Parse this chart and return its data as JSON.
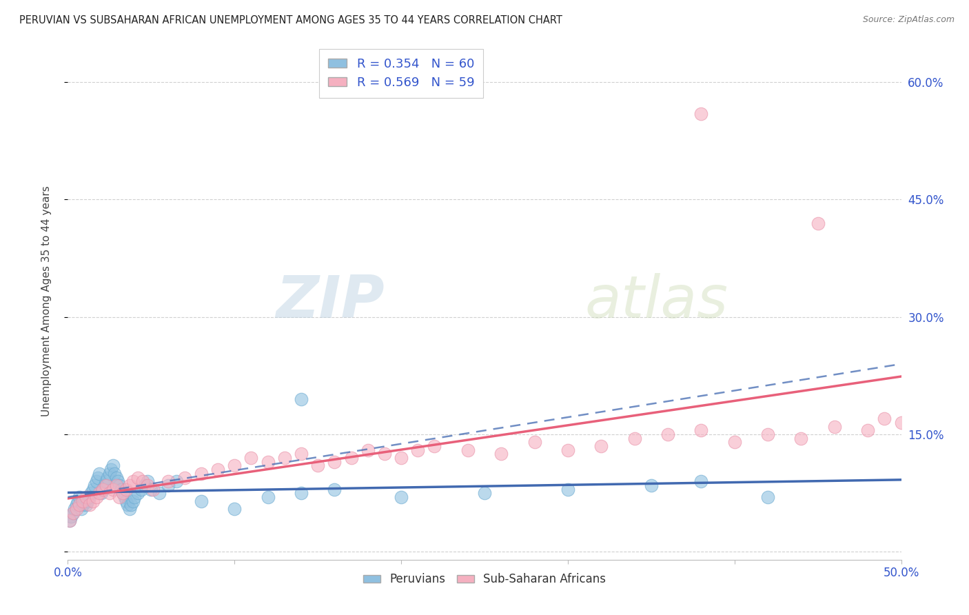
{
  "title": "PERUVIAN VS SUBSAHARAN AFRICAN UNEMPLOYMENT AMONG AGES 35 TO 44 YEARS CORRELATION CHART",
  "source": "Source: ZipAtlas.com",
  "ylabel": "Unemployment Among Ages 35 to 44 years",
  "xlim": [
    0.0,
    0.5
  ],
  "ylim": [
    -0.01,
    0.65
  ],
  "xticks": [
    0.0,
    0.1,
    0.2,
    0.3,
    0.4,
    0.5
  ],
  "yticks": [
    0.0,
    0.15,
    0.3,
    0.45,
    0.6
  ],
  "background_color": "#ffffff",
  "grid_color": "#d0d0d0",
  "peruvian_color": "#8fc0e0",
  "peruvian_edge_color": "#6aaad0",
  "subsaharan_color": "#f5b0c0",
  "subsaharan_edge_color": "#e890a8",
  "peruvian_line_color": "#4169b0",
  "subsaharan_line_color": "#e8607a",
  "peruvian_x": [
    0.001,
    0.002,
    0.003,
    0.004,
    0.005,
    0.006,
    0.007,
    0.008,
    0.009,
    0.01,
    0.011,
    0.012,
    0.013,
    0.014,
    0.015,
    0.016,
    0.017,
    0.018,
    0.019,
    0.02,
    0.021,
    0.022,
    0.023,
    0.024,
    0.025,
    0.026,
    0.027,
    0.028,
    0.029,
    0.03,
    0.031,
    0.032,
    0.033,
    0.034,
    0.035,
    0.036,
    0.037,
    0.038,
    0.039,
    0.04,
    0.042,
    0.044,
    0.046,
    0.048,
    0.05,
    0.055,
    0.06,
    0.065,
    0.08,
    0.1,
    0.12,
    0.14,
    0.16,
    0.2,
    0.25,
    0.3,
    0.14,
    0.35,
    0.38,
    0.42
  ],
  "peruvian_y": [
    0.04,
    0.045,
    0.05,
    0.055,
    0.06,
    0.065,
    0.07,
    0.055,
    0.06,
    0.065,
    0.06,
    0.065,
    0.07,
    0.075,
    0.08,
    0.085,
    0.09,
    0.095,
    0.1,
    0.075,
    0.08,
    0.085,
    0.09,
    0.095,
    0.1,
    0.105,
    0.11,
    0.1,
    0.095,
    0.09,
    0.085,
    0.08,
    0.075,
    0.07,
    0.065,
    0.06,
    0.055,
    0.06,
    0.065,
    0.07,
    0.075,
    0.08,
    0.085,
    0.09,
    0.08,
    0.075,
    0.085,
    0.09,
    0.065,
    0.055,
    0.07,
    0.075,
    0.08,
    0.07,
    0.075,
    0.08,
    0.195,
    0.085,
    0.09,
    0.07
  ],
  "subsaharan_x": [
    0.001,
    0.003,
    0.005,
    0.007,
    0.009,
    0.011,
    0.013,
    0.015,
    0.017,
    0.019,
    0.021,
    0.023,
    0.025,
    0.027,
    0.029,
    0.031,
    0.033,
    0.035,
    0.037,
    0.039,
    0.042,
    0.045,
    0.048,
    0.051,
    0.06,
    0.07,
    0.08,
    0.09,
    0.1,
    0.11,
    0.12,
    0.13,
    0.14,
    0.15,
    0.16,
    0.17,
    0.18,
    0.19,
    0.2,
    0.21,
    0.22,
    0.24,
    0.26,
    0.28,
    0.3,
    0.32,
    0.34,
    0.36,
    0.38,
    0.4,
    0.42,
    0.44,
    0.46,
    0.48,
    0.5,
    0.38,
    0.45,
    0.49
  ],
  "subsaharan_y": [
    0.04,
    0.05,
    0.055,
    0.06,
    0.065,
    0.07,
    0.06,
    0.065,
    0.07,
    0.075,
    0.08,
    0.085,
    0.075,
    0.08,
    0.085,
    0.07,
    0.075,
    0.08,
    0.085,
    0.09,
    0.095,
    0.09,
    0.085,
    0.08,
    0.09,
    0.095,
    0.1,
    0.105,
    0.11,
    0.12,
    0.115,
    0.12,
    0.125,
    0.11,
    0.115,
    0.12,
    0.13,
    0.125,
    0.12,
    0.13,
    0.135,
    0.13,
    0.125,
    0.14,
    0.13,
    0.135,
    0.145,
    0.15,
    0.155,
    0.14,
    0.15,
    0.145,
    0.16,
    0.155,
    0.165,
    0.56,
    0.42,
    0.17
  ],
  "peruvian_slope": 0.12,
  "peruvian_intercept": 0.058,
  "subsaharan_slope": 0.5,
  "subsaharan_intercept": 0.038
}
